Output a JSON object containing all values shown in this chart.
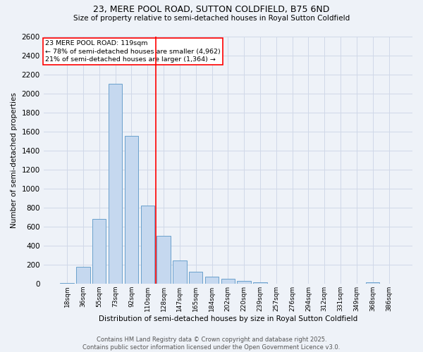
{
  "title1": "23, MERE POOL ROAD, SUTTON COLDFIELD, B75 6ND",
  "title2": "Size of property relative to semi-detached houses in Royal Sutton Coldfield",
  "xlabel": "Distribution of semi-detached houses by size in Royal Sutton Coldfield",
  "ylabel": "Number of semi-detached properties",
  "footer1": "Contains HM Land Registry data © Crown copyright and database right 2025.",
  "footer2": "Contains public sector information licensed under the Open Government Licence v3.0.",
  "bar_labels": [
    "18sqm",
    "36sqm",
    "55sqm",
    "73sqm",
    "92sqm",
    "110sqm",
    "128sqm",
    "147sqm",
    "165sqm",
    "184sqm",
    "202sqm",
    "220sqm",
    "239sqm",
    "257sqm",
    "276sqm",
    "294sqm",
    "312sqm",
    "331sqm",
    "349sqm",
    "368sqm",
    "386sqm"
  ],
  "bar_values": [
    5,
    175,
    680,
    2100,
    1550,
    820,
    500,
    245,
    125,
    70,
    50,
    30,
    10,
    0,
    0,
    0,
    0,
    0,
    0,
    15,
    0
  ],
  "bar_color": "#c5d8ef",
  "bar_edgecolor": "#6aa0cc",
  "grid_color": "#d0d8e8",
  "background_color": "#eef2f8",
  "vline_color": "red",
  "vline_pos": 5.5,
  "annotation_text": "23 MERE POOL ROAD: 119sqm\n← 78% of semi-detached houses are smaller (4,962)\n21% of semi-detached houses are larger (1,364) →",
  "annotation_box_color": "white",
  "annotation_box_edgecolor": "red",
  "ylim": [
    0,
    2600
  ],
  "yticks": [
    0,
    200,
    400,
    600,
    800,
    1000,
    1200,
    1400,
    1600,
    1800,
    2000,
    2200,
    2400,
    2600
  ]
}
